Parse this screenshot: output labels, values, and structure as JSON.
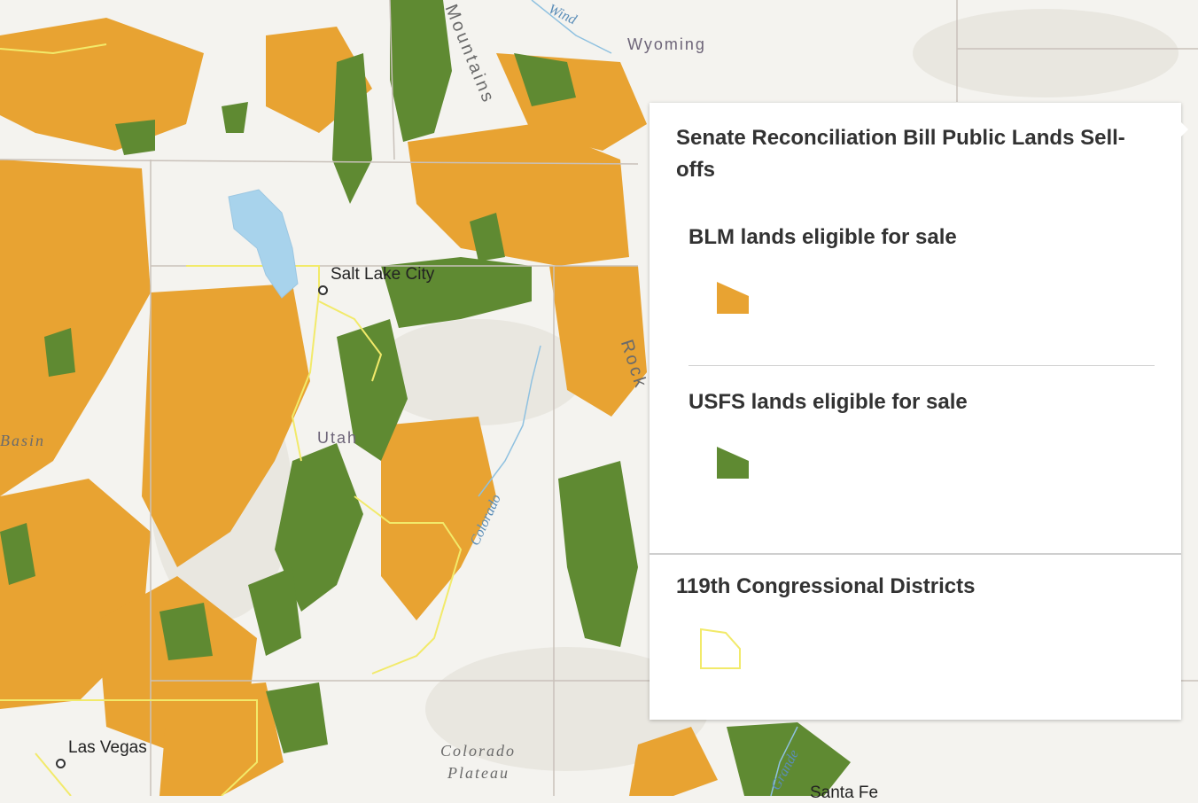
{
  "map": {
    "labels": {
      "city_1": "Salt Lake City",
      "city_2": "Las Vegas",
      "city_3": "Santa Fe",
      "state_1": "Wyoming",
      "state_2": "Utah",
      "region_1": "Basin",
      "region_2": "Colorado",
      "region_3": "Plateau",
      "river_1": "Colorado",
      "river_2": "Wind",
      "river_3": "Grande",
      "range_1": "Mountains",
      "range_2": "Rock"
    }
  },
  "legend": {
    "title": "Senate Reconciliation Bill Public Lands Sell-offs",
    "items": [
      {
        "label": "BLM lands eligible for sale",
        "color": "#e8a332"
      },
      {
        "label": "USFS lands eligible for sale",
        "color": "#5f8a32"
      },
      {
        "label": "119th Congressional Districts",
        "color": "#f2ea6a"
      }
    ]
  },
  "colors": {
    "blm": "#e8a332",
    "usfs": "#5f8a32",
    "district_outline": "#f2ea6a",
    "background": "#f4f3ef"
  }
}
